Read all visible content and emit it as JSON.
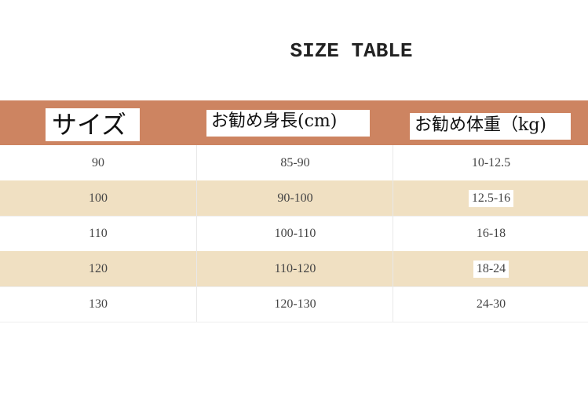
{
  "title": "SIZE TABLE",
  "colors": {
    "header": "#cd8461",
    "alt_row": "#f0e0c2"
  },
  "headers": [
    "サイズ",
    "お勧め身長(cm)",
    "お勧め体重（kg)"
  ],
  "rows": [
    [
      "90",
      "85-90",
      "10-12.5"
    ],
    [
      "100",
      "90-100",
      "12.5-16"
    ],
    [
      "110",
      "100-110",
      "16-18"
    ],
    [
      "120",
      "110-120",
      "18-24"
    ],
    [
      "130",
      "120-130",
      "24-30"
    ]
  ]
}
